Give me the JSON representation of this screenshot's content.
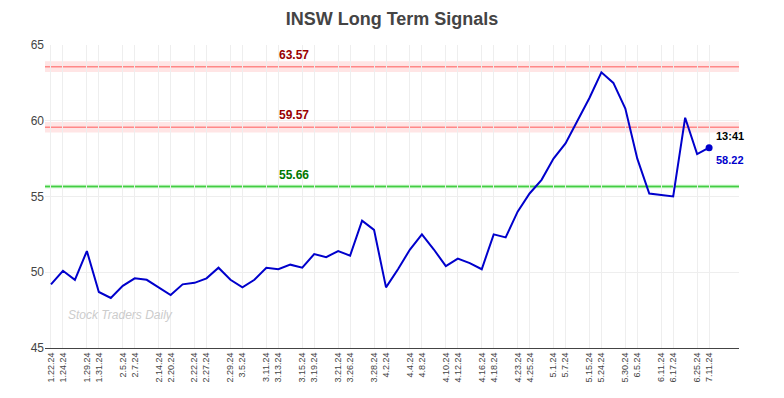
{
  "chart_data": {
    "type": "line",
    "title": "INSW Long Term Signals",
    "categories": [
      "1.22.24",
      "1.24.24",
      null,
      "1.29.24",
      "1.31.24",
      null,
      "2.5.24",
      "2.7.24",
      null,
      "2.14.24",
      "2.20.24",
      null,
      "2.22.24",
      "2.27.24",
      null,
      "2.29.24",
      "3.5.24",
      null,
      "3.11.24",
      "3.13.24",
      null,
      "3.15.24",
      "3.19.24",
      null,
      "3.21.24",
      "3.26.24",
      null,
      "3.28.24",
      "4.2.24",
      null,
      "4.4.24",
      "4.8.24",
      null,
      "4.10.24",
      "4.12.24",
      null,
      "4.16.24",
      "4.18.24",
      null,
      "4.23.24",
      "4.25.24",
      null,
      "5.1.24",
      "5.7.24",
      null,
      "5.15.24",
      "5.24.24",
      null,
      "5.30.24",
      "6.5.24",
      null,
      "6.11.24",
      "6.17.24",
      null,
      "6.25.24",
      "7.11.24"
    ],
    "series": [
      {
        "color": "#0000cc",
        "values": [
          49.2,
          50.1,
          49.5,
          51.4,
          48.7,
          48.3,
          49.1,
          49.6,
          49.5,
          49.0,
          48.5,
          49.2,
          49.3,
          49.6,
          50.3,
          49.5,
          49.0,
          49.5,
          50.3,
          50.2,
          50.5,
          50.3,
          51.2,
          51.0,
          51.4,
          51.1,
          53.4,
          52.8,
          49.0,
          50.2,
          51.5,
          52.5,
          51.5,
          50.4,
          50.9,
          50.6,
          50.2,
          52.5,
          52.3,
          54.0,
          55.2,
          56.1,
          57.5,
          58.5,
          60.0,
          61.5,
          63.2,
          62.5,
          60.8,
          57.5,
          55.2,
          55.1,
          55.0,
          60.2,
          57.8,
          58.22
        ]
      }
    ],
    "hlines": [
      {
        "value": 63.57,
        "label": "63.57",
        "color": "#990000"
      },
      {
        "value": 59.57,
        "label": "59.57",
        "color": "#990000"
      },
      {
        "value": 55.66,
        "label": "55.66",
        "color": "#007700"
      }
    ],
    "last_point_labels": [
      "13:41",
      "58.22"
    ],
    "watermark": "Stock Traders Daily",
    "ylim": [
      45,
      65
    ],
    "yticks": [
      45,
      50,
      55,
      60,
      65
    ],
    "grid": true
  }
}
